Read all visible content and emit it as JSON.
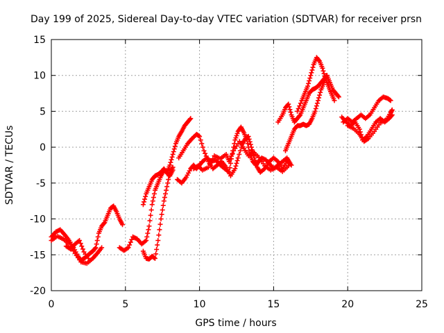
{
  "chart_data": {
    "type": "scatter",
    "title": "Day 199 of 2025, Sidereal Day-to-day VTEC variation (SDTVAR) for receiver prsn",
    "xlabel": "GPS time / hours",
    "ylabel": "SDTVAR / TECUs",
    "xlim": [
      0,
      25
    ],
    "ylim": [
      -20,
      15
    ],
    "xticks": [
      0,
      5,
      10,
      15,
      20,
      25
    ],
    "yticks": [
      -20,
      -15,
      -10,
      -5,
      0,
      5,
      10,
      15
    ],
    "grid": true,
    "marker": "+",
    "color": "#ff0000",
    "series": [
      {
        "values": [
          [
            0.0,
            -12.5
          ],
          [
            0.3,
            -11.8
          ],
          [
            0.6,
            -11.5
          ],
          [
            0.9,
            -12.2
          ],
          [
            1.2,
            -13.0
          ],
          [
            1.5,
            -14.0
          ],
          [
            1.8,
            -15.2
          ],
          [
            2.0,
            -15.8
          ],
          [
            2.2,
            -15.5
          ],
          [
            2.4,
            -15.2
          ],
          [
            2.6,
            -14.8
          ],
          [
            2.8,
            -14.5
          ],
          [
            3.0,
            -14.0
          ],
          [
            3.2,
            -12.0
          ],
          [
            3.4,
            -11.0
          ],
          [
            3.6,
            -10.5
          ],
          [
            3.8,
            -9.5
          ],
          [
            4.0,
            -8.5
          ],
          [
            4.2,
            -8.2
          ],
          [
            4.4,
            -9.0
          ],
          [
            4.6,
            -10.0
          ],
          [
            4.8,
            -10.8
          ]
        ]
      },
      {
        "values": [
          [
            0.0,
            -13.0
          ],
          [
            0.4,
            -12.4
          ],
          [
            0.8,
            -12.8
          ],
          [
            1.2,
            -13.5
          ],
          [
            1.6,
            -14.8
          ],
          [
            2.0,
            -16.0
          ],
          [
            2.4,
            -16.2
          ],
          [
            2.8,
            -15.5
          ],
          [
            3.1,
            -14.8
          ],
          [
            3.4,
            -14.0
          ]
        ]
      },
      {
        "values": [
          [
            1.0,
            -13.8
          ],
          [
            1.3,
            -14.2
          ],
          [
            1.6,
            -13.5
          ],
          [
            1.9,
            -13.0
          ],
          [
            2.2,
            -14.6
          ],
          [
            2.6,
            -15.8
          ]
        ]
      },
      {
        "values": [
          [
            4.6,
            -14.0
          ],
          [
            4.9,
            -14.4
          ],
          [
            5.2,
            -14.0
          ],
          [
            5.5,
            -12.5
          ],
          [
            5.8,
            -12.8
          ],
          [
            6.1,
            -13.5
          ],
          [
            6.4,
            -13.0
          ],
          [
            6.6,
            -11.0
          ],
          [
            6.8,
            -8.0
          ],
          [
            7.0,
            -6.0
          ],
          [
            7.2,
            -5.0
          ],
          [
            7.4,
            -4.0
          ],
          [
            7.6,
            -3.2
          ],
          [
            7.8,
            -3.5
          ],
          [
            8.0,
            -2.5
          ],
          [
            8.2,
            -1.0
          ],
          [
            8.4,
            0.5
          ],
          [
            8.6,
            1.5
          ],
          [
            8.8,
            2.2
          ],
          [
            9.0,
            3.0
          ],
          [
            9.2,
            3.5
          ],
          [
            9.4,
            4.0
          ]
        ]
      },
      {
        "values": [
          [
            6.2,
            -14.5
          ],
          [
            6.4,
            -15.5
          ],
          [
            6.6,
            -15.6
          ],
          [
            6.8,
            -15.2
          ],
          [
            7.0,
            -15.5
          ],
          [
            7.2,
            -13.0
          ],
          [
            7.4,
            -10.0
          ],
          [
            7.6,
            -7.5
          ],
          [
            7.8,
            -5.5
          ],
          [
            8.0,
            -3.5
          ],
          [
            8.2,
            -2.8
          ]
        ]
      },
      {
        "values": [
          [
            6.2,
            -8.0
          ],
          [
            6.4,
            -6.5
          ],
          [
            6.6,
            -5.5
          ],
          [
            6.8,
            -4.5
          ],
          [
            7.0,
            -4.0
          ],
          [
            7.2,
            -3.8
          ],
          [
            7.4,
            -3.5
          ],
          [
            7.6,
            -3.0
          ],
          [
            7.8,
            -3.6
          ],
          [
            8.0,
            -4.0
          ],
          [
            8.2,
            -3.2
          ]
        ]
      },
      {
        "values": [
          [
            8.5,
            -4.5
          ],
          [
            8.8,
            -5.0
          ],
          [
            9.1,
            -4.2
          ],
          [
            9.4,
            -3.0
          ],
          [
            9.6,
            -2.5
          ],
          [
            9.8,
            -3.0
          ],
          [
            10.0,
            -2.5
          ],
          [
            10.2,
            -2.0
          ],
          [
            10.5,
            -1.5
          ],
          [
            10.8,
            -2.0
          ],
          [
            11.1,
            -1.8
          ],
          [
            11.4,
            -2.5
          ],
          [
            11.7,
            -3.0
          ],
          [
            12.0,
            -3.5
          ],
          [
            12.2,
            -1.0
          ],
          [
            12.4,
            1.0
          ],
          [
            12.6,
            2.2
          ],
          [
            12.8,
            2.8
          ],
          [
            13.0,
            2.0
          ],
          [
            13.2,
            1.0
          ],
          [
            13.4,
            -1.0
          ],
          [
            13.6,
            -2.0
          ],
          [
            13.8,
            -2.5
          ],
          [
            14.0,
            -2.0
          ],
          [
            14.2,
            -1.5
          ],
          [
            14.5,
            -1.8
          ],
          [
            14.8,
            -2.5
          ],
          [
            15.0,
            -3.0
          ],
          [
            15.3,
            -2.5
          ],
          [
            15.6,
            -2.0
          ],
          [
            15.9,
            -1.5
          ],
          [
            16.1,
            -2.2
          ]
        ]
      },
      {
        "values": [
          [
            8.6,
            -1.5
          ],
          [
            8.9,
            -0.5
          ],
          [
            9.2,
            0.5
          ],
          [
            9.5,
            1.2
          ],
          [
            9.8,
            1.8
          ],
          [
            10.0,
            1.5
          ],
          [
            10.3,
            -0.5
          ],
          [
            10.6,
            -2.0
          ],
          [
            10.9,
            -3.0
          ],
          [
            11.2,
            -2.5
          ],
          [
            11.5,
            -2.0
          ],
          [
            11.8,
            -2.8
          ],
          [
            12.1,
            -4.0
          ],
          [
            12.4,
            -3.0
          ],
          [
            12.6,
            -1.5
          ],
          [
            12.9,
            0.5
          ],
          [
            13.1,
            1.2
          ],
          [
            13.3,
            1.5
          ],
          [
            13.5,
            0.0
          ],
          [
            13.7,
            -1.5
          ],
          [
            13.9,
            -2.8
          ],
          [
            14.1,
            -3.5
          ],
          [
            14.4,
            -3.0
          ],
          [
            14.7,
            -2.0
          ],
          [
            15.0,
            -1.5
          ],
          [
            15.3,
            -2.0
          ],
          [
            15.6,
            -3.0
          ],
          [
            15.9,
            -2.0
          ],
          [
            16.2,
            -2.5
          ]
        ]
      },
      {
        "values": [
          [
            9.6,
            -3.0
          ],
          [
            9.9,
            -2.6
          ],
          [
            10.2,
            -3.2
          ],
          [
            10.6,
            -2.8
          ],
          [
            11.0,
            -1.2
          ],
          [
            11.4,
            -1.6
          ],
          [
            11.8,
            -1.0
          ],
          [
            12.0,
            -2.0
          ],
          [
            12.3,
            -0.5
          ],
          [
            12.7,
            0.8
          ],
          [
            13.0,
            -0.2
          ],
          [
            13.3,
            -1.2
          ],
          [
            13.6,
            -0.6
          ],
          [
            14.0,
            -1.4
          ],
          [
            14.4,
            -2.6
          ],
          [
            14.8,
            -3.2
          ],
          [
            15.2,
            -2.8
          ],
          [
            15.6,
            -3.4
          ],
          [
            16.0,
            -2.6
          ]
        ]
      },
      {
        "values": [
          [
            15.3,
            3.5
          ],
          [
            15.6,
            4.5
          ],
          [
            15.8,
            5.5
          ],
          [
            16.0,
            6.0
          ],
          [
            16.2,
            4.5
          ],
          [
            16.4,
            3.5
          ],
          [
            16.6,
            4.0
          ],
          [
            16.8,
            4.5
          ],
          [
            17.0,
            5.5
          ],
          [
            17.2,
            6.5
          ],
          [
            17.4,
            7.5
          ],
          [
            17.6,
            8.0
          ],
          [
            17.8,
            8.2
          ],
          [
            18.0,
            8.5
          ],
          [
            18.2,
            9.0
          ],
          [
            18.4,
            9.5
          ],
          [
            18.6,
            10.0
          ],
          [
            18.8,
            9.0
          ],
          [
            19.0,
            8.0
          ],
          [
            19.2,
            7.5
          ],
          [
            19.4,
            7.0
          ]
        ]
      },
      {
        "values": [
          [
            15.8,
            -0.5
          ],
          [
            16.0,
            0.5
          ],
          [
            16.2,
            1.5
          ],
          [
            16.4,
            2.5
          ],
          [
            16.6,
            3.0
          ],
          [
            16.8,
            3.0
          ],
          [
            17.0,
            3.2
          ],
          [
            17.2,
            3.0
          ],
          [
            17.4,
            3.2
          ],
          [
            17.6,
            4.0
          ],
          [
            17.8,
            5.0
          ],
          [
            18.0,
            6.5
          ],
          [
            18.2,
            8.0
          ],
          [
            18.4,
            9.0
          ],
          [
            18.6,
            10.0
          ],
          [
            18.8,
            8.0
          ],
          [
            19.0,
            7.0
          ]
        ]
      },
      {
        "values": [
          [
            16.6,
            5.0
          ],
          [
            16.9,
            6.5
          ],
          [
            17.1,
            7.5
          ],
          [
            17.3,
            8.5
          ],
          [
            17.5,
            10.0
          ],
          [
            17.7,
            11.5
          ],
          [
            17.9,
            12.5
          ],
          [
            18.1,
            12.0
          ],
          [
            18.3,
            11.0
          ],
          [
            18.5,
            9.5
          ],
          [
            18.7,
            8.5
          ],
          [
            18.9,
            7.5
          ],
          [
            19.1,
            6.5
          ]
        ]
      },
      {
        "values": [
          [
            19.6,
            4.2
          ],
          [
            19.9,
            3.5
          ],
          [
            20.2,
            3.0
          ],
          [
            20.5,
            3.5
          ],
          [
            20.8,
            2.5
          ],
          [
            21.0,
            1.0
          ],
          [
            21.3,
            1.5
          ],
          [
            21.6,
            2.5
          ],
          [
            21.9,
            3.5
          ],
          [
            22.2,
            4.0
          ],
          [
            22.5,
            3.5
          ],
          [
            22.8,
            4.0
          ],
          [
            23.0,
            4.5
          ]
        ]
      },
      {
        "values": [
          [
            19.7,
            3.5
          ],
          [
            20.0,
            4.0
          ],
          [
            20.3,
            3.5
          ],
          [
            20.6,
            4.0
          ],
          [
            20.9,
            4.5
          ],
          [
            21.2,
            4.0
          ],
          [
            21.5,
            4.5
          ],
          [
            21.8,
            5.5
          ],
          [
            22.1,
            6.5
          ],
          [
            22.4,
            7.0
          ],
          [
            22.7,
            6.8
          ],
          [
            22.9,
            6.5
          ]
        ]
      },
      {
        "values": [
          [
            20.0,
            3.0
          ],
          [
            20.4,
            2.6
          ],
          [
            20.8,
            1.8
          ],
          [
            21.1,
            0.8
          ],
          [
            21.4,
            1.2
          ],
          [
            21.8,
            2.2
          ],
          [
            22.2,
            3.4
          ],
          [
            22.6,
            3.8
          ],
          [
            22.9,
            4.8
          ],
          [
            23.0,
            5.2
          ]
        ]
      }
    ]
  }
}
